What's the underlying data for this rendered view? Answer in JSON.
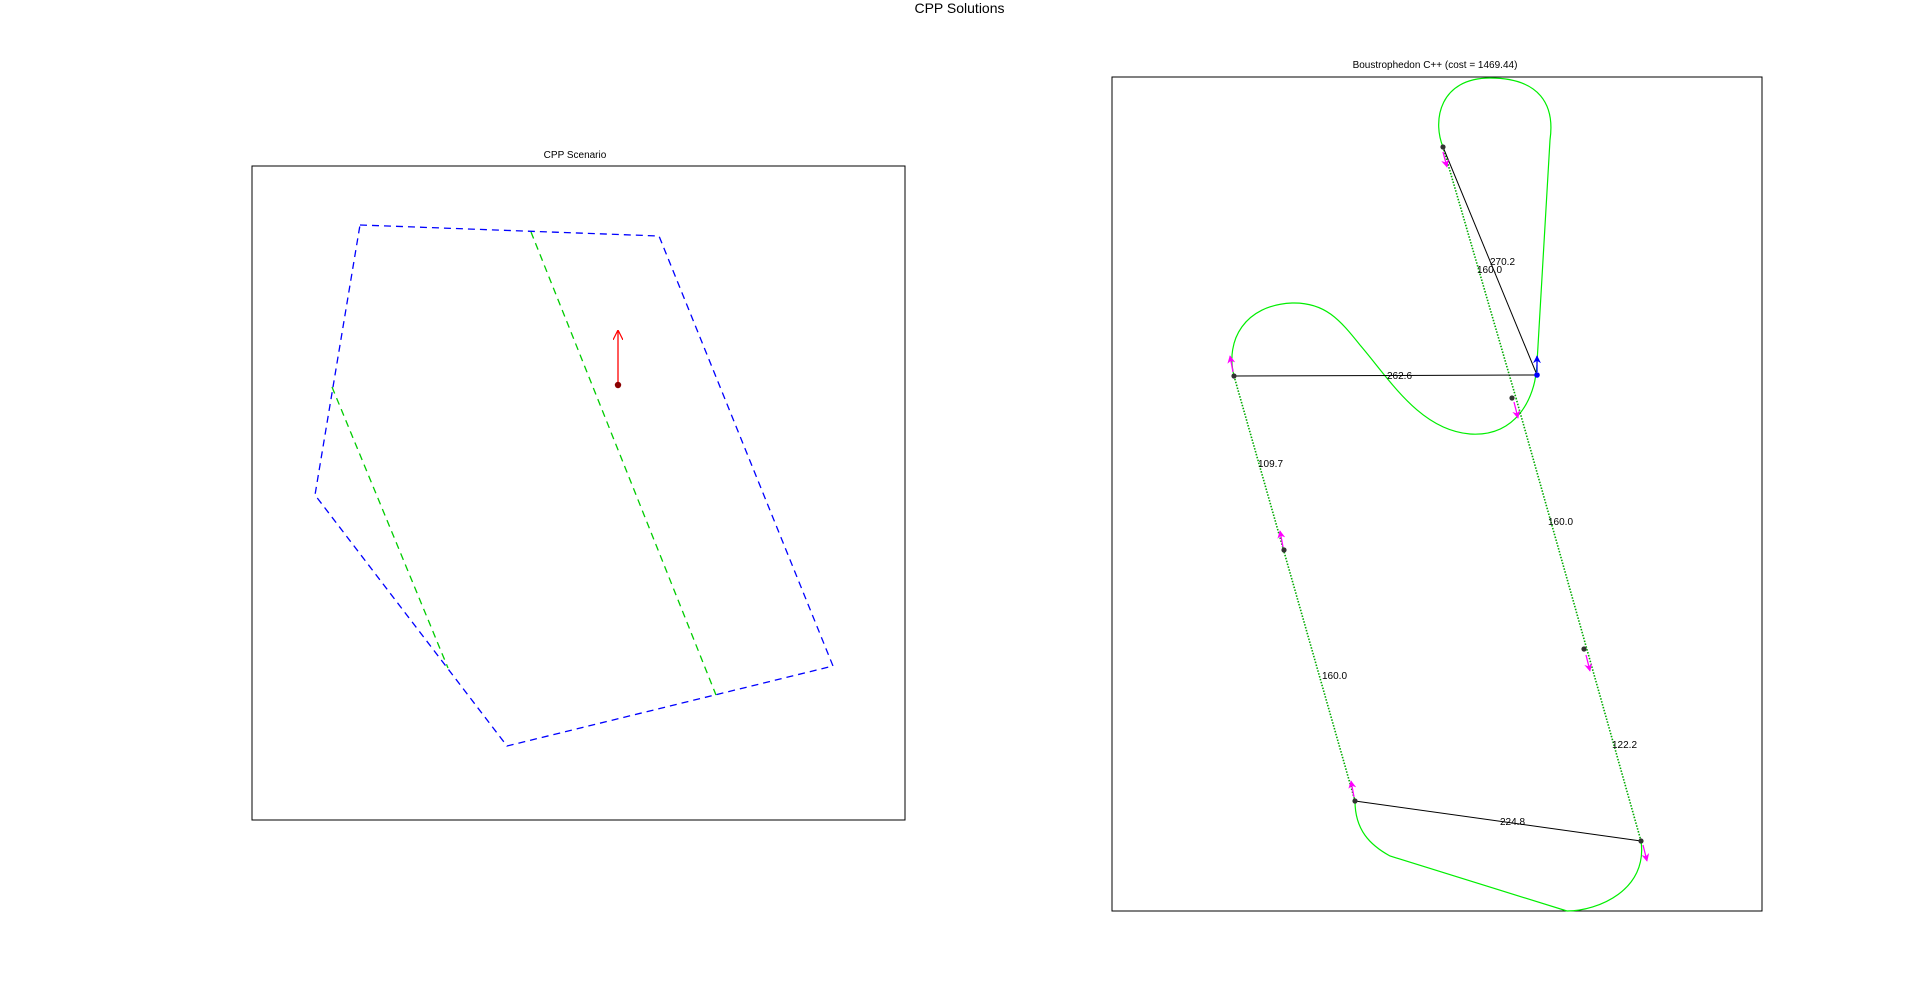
{
  "figure": {
    "title": "CPP Solutions"
  },
  "scenario": {
    "title": "CPP Scenario",
    "colors": {
      "boundary": "#0000ff",
      "division": "#00cc00",
      "start": "#ff0000",
      "start_marker": "#8b0000"
    }
  },
  "solution": {
    "title": "Boustrophedon C++ (cost = 1469.44)",
    "colors": {
      "dubins": "#00ee00",
      "transition": "#000000",
      "swath": "#00aa00",
      "heading_arrow": "#ff00ff",
      "start_arrow": "#0000ff",
      "node": "#333333"
    },
    "segment_labels": [
      "270.2",
      "160.0",
      "262.6",
      "109.7",
      "160.0",
      "160.0",
      "122.2",
      "224.8"
    ]
  }
}
